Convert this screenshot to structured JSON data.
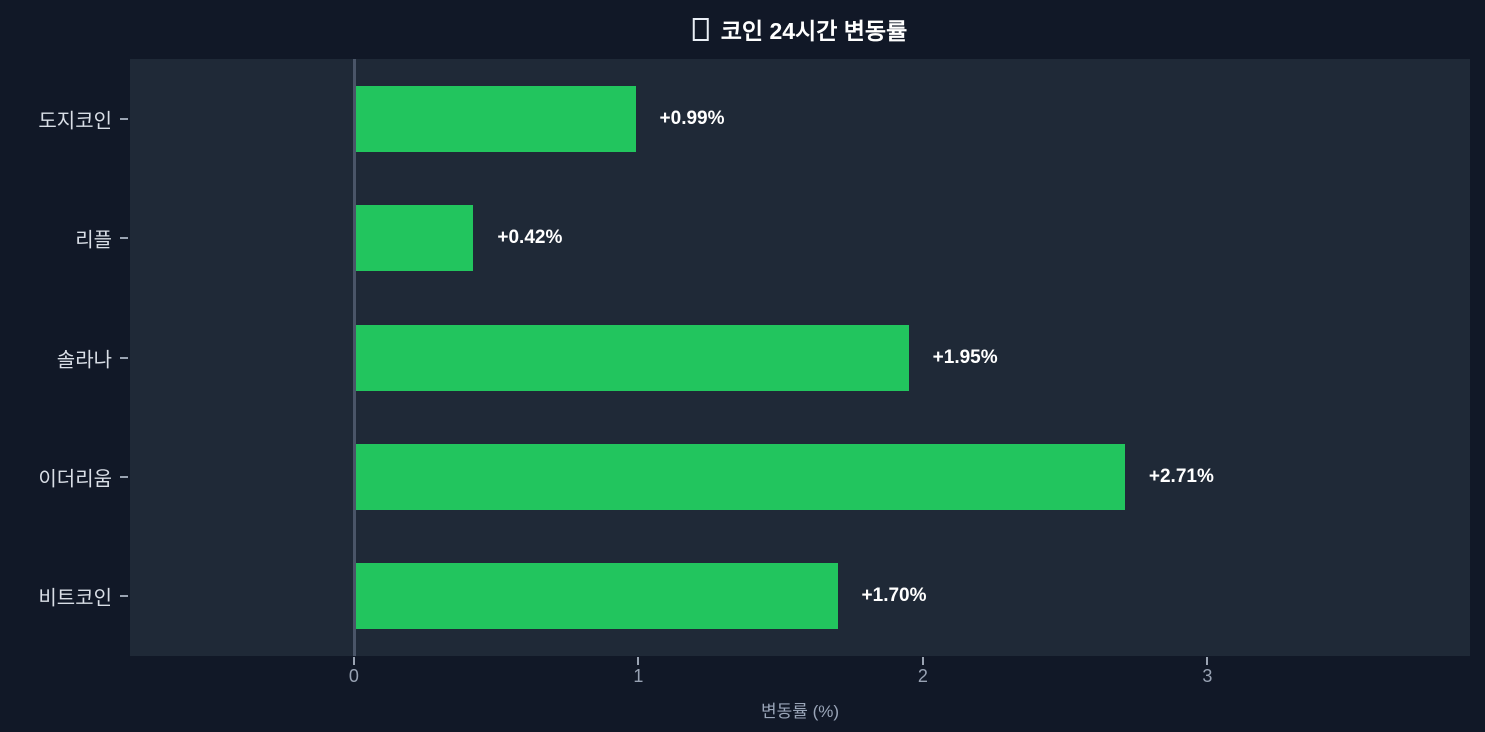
{
  "title": {
    "icon_glyph": "□",
    "icon_meaning": "missing-emoji-glyph",
    "text": "코인 24시간 변동률"
  },
  "chart_data": {
    "type": "bar",
    "orientation": "horizontal",
    "title": "코인 24시간 변동률",
    "categories": [
      "도지코인",
      "리플",
      "솔라나",
      "이더리움",
      "비트코인"
    ],
    "category_order": "top-to-bottom",
    "values": [
      0.99,
      0.42,
      1.95,
      2.71,
      1.7
    ],
    "value_labels": [
      "+0.99%",
      "+0.42%",
      "+1.95%",
      "+2.71%",
      "+1.70%"
    ],
    "xlabel": "변동률 (%)",
    "ylabel": "",
    "x_ticks": [
      0,
      1,
      2,
      3
    ],
    "xlim": [
      -0.787,
      3.923
    ],
    "grid": false,
    "legend": null,
    "bar_color": "#22c55e",
    "outer_background": "#111827",
    "plot_background": "#1f2937",
    "zero_line_color": "#4a5568",
    "value_label_color": "#ffffff",
    "axis_label_color": "#98a2b3",
    "category_label_color": "#d9dee6"
  }
}
